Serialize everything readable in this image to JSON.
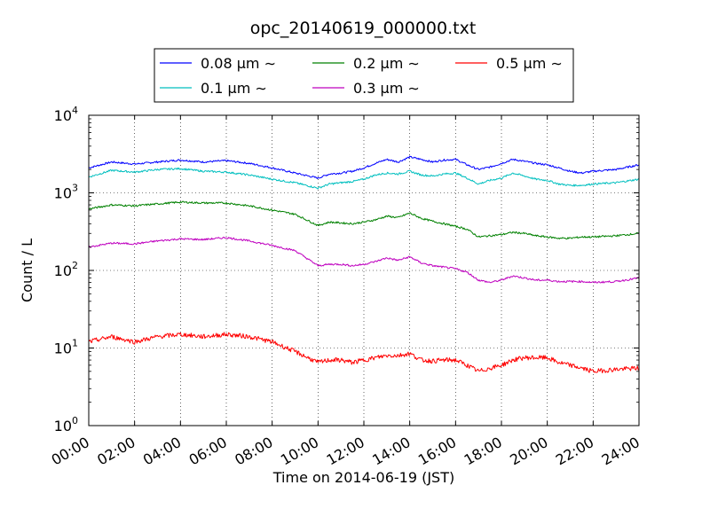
{
  "chart_data": {
    "type": "line",
    "title": "opc_20140619_000000.txt",
    "xlabel": "Time on 2014-06-19 (JST)",
    "ylabel": "Count / L",
    "x_unit": "hour",
    "xlim": [
      0,
      24
    ],
    "yscale": "log",
    "ylim": [
      1,
      10000
    ],
    "grid": true,
    "legend_position": "top",
    "x_ticks": [
      "00:00",
      "02:00",
      "04:00",
      "06:00",
      "08:00",
      "10:00",
      "12:00",
      "14:00",
      "16:00",
      "18:00",
      "20:00",
      "22:00",
      "24:00"
    ],
    "y_tick_base": "10",
    "y_tick_exponents": [
      "0",
      "1",
      "2",
      "3",
      "4"
    ],
    "series": [
      {
        "name": "0.08 μm ∼",
        "color": "#0000ff",
        "x": [
          0,
          1,
          2,
          3,
          4,
          5,
          6,
          7,
          8,
          9,
          10,
          10.5,
          11,
          11.5,
          12,
          12.5,
          13,
          13.5,
          14,
          14.5,
          15,
          15.5,
          16,
          16.5,
          17,
          17.5,
          18,
          18.5,
          19,
          19.5,
          20,
          20.5,
          21,
          21.5,
          22,
          23,
          24
        ],
        "y": [
          2100,
          2500,
          2350,
          2500,
          2650,
          2500,
          2600,
          2400,
          2100,
          1800,
          1550,
          1750,
          1800,
          1900,
          2100,
          2400,
          2700,
          2500,
          2900,
          2700,
          2500,
          2650,
          2700,
          2300,
          2000,
          2150,
          2400,
          2700,
          2550,
          2400,
          2300,
          2100,
          1900,
          1800,
          1900,
          2000,
          2300
        ]
      },
      {
        "name": "0.1 μm ∼",
        "color": "#00bfbf",
        "x": [
          0,
          1,
          2,
          3,
          4,
          5,
          6,
          7,
          8,
          9,
          10,
          10.5,
          11,
          11.5,
          12,
          12.5,
          13,
          13.5,
          14,
          14.5,
          15,
          15.5,
          16,
          16.5,
          17,
          17.5,
          18,
          18.5,
          19,
          19.5,
          20,
          20.5,
          21,
          21.5,
          22,
          23,
          24
        ],
        "y": [
          1600,
          1950,
          1850,
          2000,
          2050,
          1900,
          1850,
          1700,
          1500,
          1350,
          1150,
          1300,
          1350,
          1400,
          1500,
          1700,
          1800,
          1750,
          1900,
          1700,
          1650,
          1750,
          1800,
          1550,
          1300,
          1450,
          1550,
          1800,
          1650,
          1500,
          1450,
          1300,
          1250,
          1250,
          1300,
          1350,
          1500
        ]
      },
      {
        "name": "0.2 μm ∼",
        "color": "#008000",
        "x": [
          0,
          1,
          2,
          3,
          4,
          5,
          6,
          7,
          8,
          9,
          10,
          10.5,
          11,
          11.5,
          12,
          12.5,
          13,
          13.5,
          14,
          14.5,
          15,
          15.5,
          16,
          16.5,
          17,
          17.5,
          18,
          18.5,
          19,
          19.5,
          20,
          20.5,
          21,
          21.5,
          22,
          23,
          24
        ],
        "y": [
          620,
          700,
          680,
          720,
          760,
          740,
          740,
          680,
          600,
          530,
          380,
          420,
          410,
          400,
          420,
          450,
          500,
          480,
          550,
          470,
          430,
          400,
          370,
          340,
          270,
          280,
          290,
          310,
          300,
          280,
          270,
          260,
          260,
          270,
          270,
          280,
          300
        ]
      },
      {
        "name": "0.3 μm ∼",
        "color": "#bf00bf",
        "x": [
          0,
          1,
          2,
          3,
          4,
          5,
          6,
          7,
          8,
          9,
          10,
          10.5,
          11,
          11.5,
          12,
          12.5,
          13,
          13.5,
          14,
          14.5,
          15,
          15.5,
          16,
          16.5,
          17,
          17.5,
          18,
          18.5,
          19,
          19.5,
          20,
          20.5,
          21,
          21.5,
          22,
          23,
          24
        ],
        "y": [
          200,
          225,
          220,
          240,
          255,
          250,
          265,
          240,
          210,
          180,
          115,
          120,
          120,
          115,
          120,
          130,
          145,
          135,
          150,
          125,
          115,
          110,
          105,
          95,
          75,
          70,
          75,
          85,
          80,
          75,
          75,
          72,
          72,
          72,
          70,
          72,
          80
        ]
      },
      {
        "name": "0.5 μm ∼",
        "color": "#ff0000",
        "x": [
          0,
          1,
          2,
          3,
          4,
          5,
          6,
          7,
          8,
          9,
          10,
          10.5,
          11,
          11.5,
          12,
          12.5,
          13,
          13.5,
          14,
          14.5,
          15,
          15.5,
          16,
          16.5,
          17,
          17.5,
          18,
          18.5,
          19,
          19.5,
          20,
          20.5,
          21,
          21.5,
          22,
          23,
          24
        ],
        "y": [
          12,
          14,
          12,
          14,
          15,
          14,
          15,
          14,
          12,
          9,
          6.5,
          7,
          7,
          6.5,
          7,
          7.5,
          8,
          8,
          8.5,
          7,
          6.8,
          7,
          7,
          6,
          5,
          5.5,
          6,
          7,
          7.5,
          7.5,
          7.5,
          6.5,
          6,
          5.5,
          5,
          5.3,
          5.5
        ]
      }
    ]
  }
}
